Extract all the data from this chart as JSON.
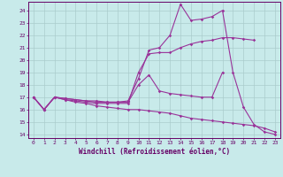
{
  "background_color": "#c8eaea",
  "grid_color": "#aacccc",
  "line_color": "#993399",
  "xlabel": "Windchill (Refroidissement éolien,°C)",
  "yticks": [
    14,
    15,
    16,
    17,
    18,
    19,
    20,
    21,
    22,
    23,
    24
  ],
  "xticks": [
    0,
    1,
    2,
    3,
    4,
    5,
    6,
    7,
    8,
    9,
    10,
    11,
    12,
    13,
    14,
    15,
    16,
    17,
    18,
    19,
    20,
    21,
    22,
    23
  ],
  "xlim": [
    -0.5,
    23.5
  ],
  "ylim": [
    13.7,
    24.7
  ],
  "series": [
    {
      "x": [
        0,
        1,
        2,
        3,
        4,
        5,
        6,
        7,
        8,
        9,
        10,
        11,
        12,
        13,
        14,
        15,
        16,
        17,
        18,
        19,
        20,
        21
      ],
      "y": [
        17,
        16,
        17,
        16.8,
        16.7,
        16.6,
        16.5,
        16.5,
        16.5,
        16.5,
        19.0,
        20.5,
        20.6,
        20.6,
        21.0,
        21.3,
        21.5,
        21.6,
        21.8,
        21.8,
        21.7,
        21.6
      ]
    },
    {
      "x": [
        0,
        1,
        2,
        3,
        4,
        5,
        6,
        7,
        8,
        9,
        10,
        11,
        12,
        13,
        14,
        15,
        16,
        17,
        18,
        19,
        20,
        21,
        22,
        23
      ],
      "y": [
        17,
        16,
        17,
        16.9,
        16.8,
        16.7,
        16.7,
        16.6,
        16.6,
        16.7,
        18.5,
        20.8,
        21.0,
        22.0,
        24.5,
        23.2,
        23.3,
        23.5,
        24.0,
        19.0,
        16.2,
        14.8,
        14.2,
        14.0
      ]
    },
    {
      "x": [
        0,
        1,
        2,
        3,
        4,
        5,
        6,
        7,
        8,
        9,
        10,
        11,
        12,
        13,
        14,
        15,
        16,
        17,
        18,
        19,
        20,
        21,
        22,
        23
      ],
      "y": [
        17,
        16,
        17,
        16.8,
        16.6,
        16.5,
        16.3,
        16.2,
        16.1,
        16.0,
        16.0,
        15.9,
        15.8,
        15.7,
        15.5,
        15.3,
        15.2,
        15.1,
        15.0,
        14.9,
        14.8,
        14.7,
        14.5,
        14.2
      ]
    },
    {
      "x": [
        0,
        1,
        2,
        3,
        4,
        5,
        6,
        7,
        8,
        9,
        10,
        11,
        12,
        13,
        14,
        15,
        16,
        17,
        18,
        19,
        20,
        21,
        22,
        23
      ],
      "y": [
        17,
        16,
        17,
        16.9,
        16.8,
        16.7,
        16.6,
        16.6,
        16.6,
        16.6,
        18.0,
        18.8,
        17.5,
        17.3,
        17.2,
        17.1,
        17.0,
        17.0,
        19.0,
        null,
        null,
        null,
        null,
        null
      ]
    }
  ]
}
